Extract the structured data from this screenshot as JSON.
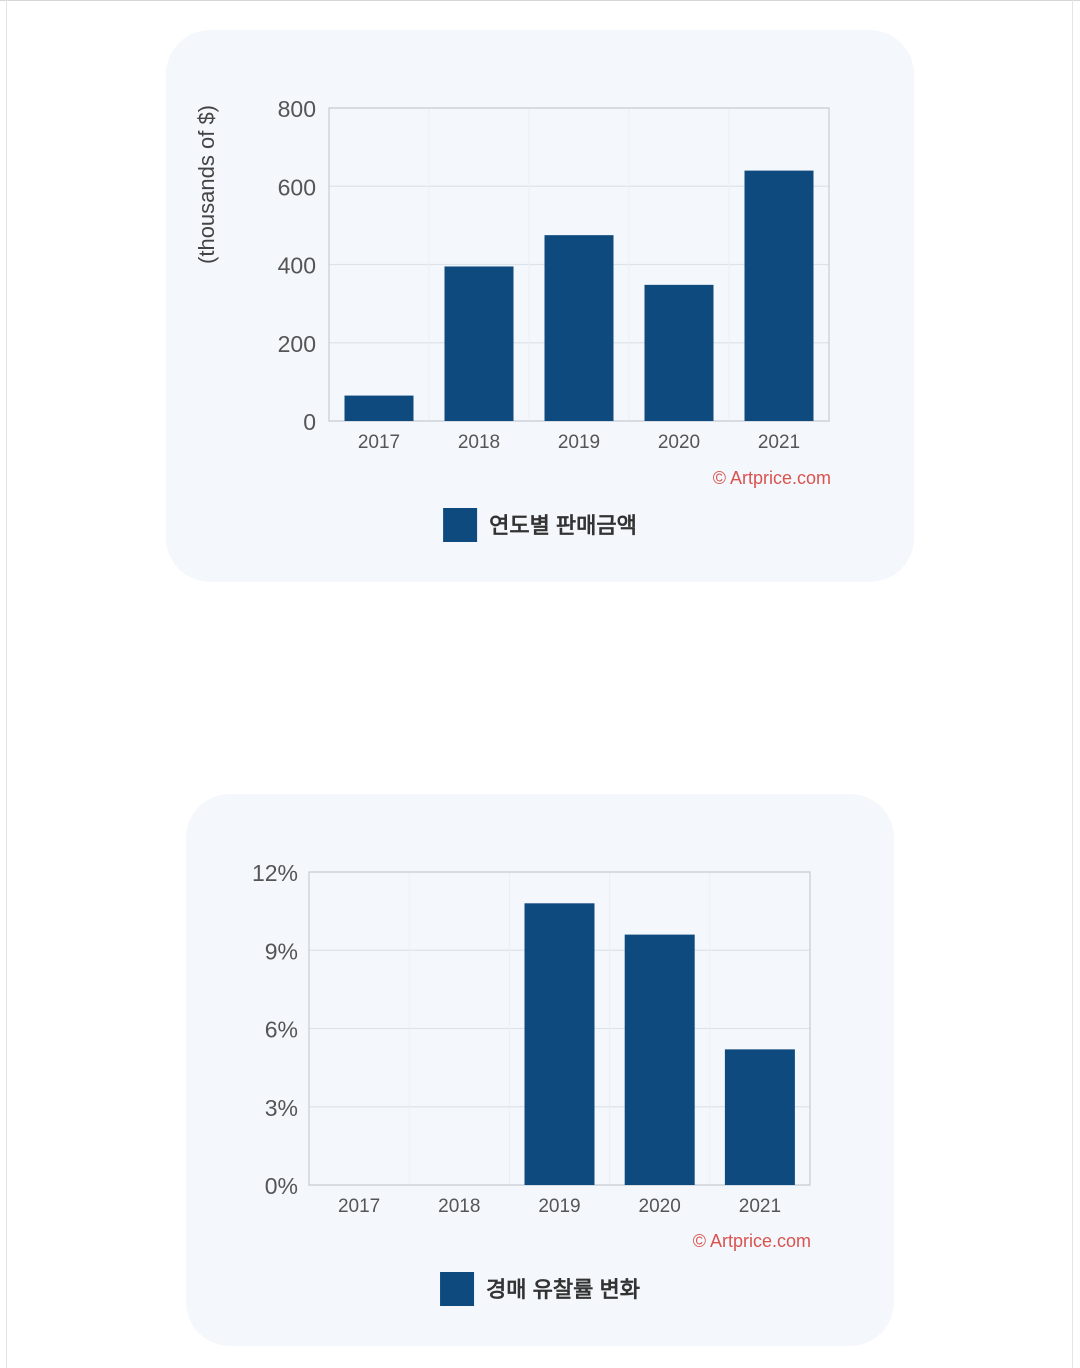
{
  "colors": {
    "bar": "#0f4a7e",
    "grid": "#dde3ea",
    "axis": "#c6ccd3",
    "card": "#f4f8fc",
    "credit": "#d9534f"
  },
  "chart_data": [
    {
      "type": "bar",
      "title": "",
      "xlabel": "",
      "ylabel": "(thousands of $)",
      "categories": [
        "2017",
        "2018",
        "2019",
        "2020",
        "2021"
      ],
      "series": [
        {
          "name": "연도별 판매금액",
          "values": [
            65,
            395,
            475,
            348,
            640
          ]
        }
      ],
      "ylim": [
        0,
        800
      ],
      "yticks": [
        0,
        200,
        400,
        600,
        800
      ],
      "ytick_labels": [
        "0",
        "200",
        "400",
        "600",
        "800"
      ],
      "grid": true,
      "legend": "bottom-center",
      "credit": "© Artprice.com"
    },
    {
      "type": "bar",
      "title": "",
      "xlabel": "",
      "ylabel": "",
      "categories": [
        "2017",
        "2018",
        "2019",
        "2020",
        "2021"
      ],
      "series": [
        {
          "name": "경매 유찰률 변화",
          "values": [
            0,
            0,
            10.8,
            9.6,
            5.2
          ]
        }
      ],
      "ylim": [
        0,
        12
      ],
      "yticks": [
        0,
        3,
        6,
        9,
        12
      ],
      "ytick_labels": [
        "0%",
        "3%",
        "6%",
        "9%",
        "12%"
      ],
      "grid": true,
      "legend": "bottom-center",
      "credit": "© Artprice.com"
    }
  ]
}
